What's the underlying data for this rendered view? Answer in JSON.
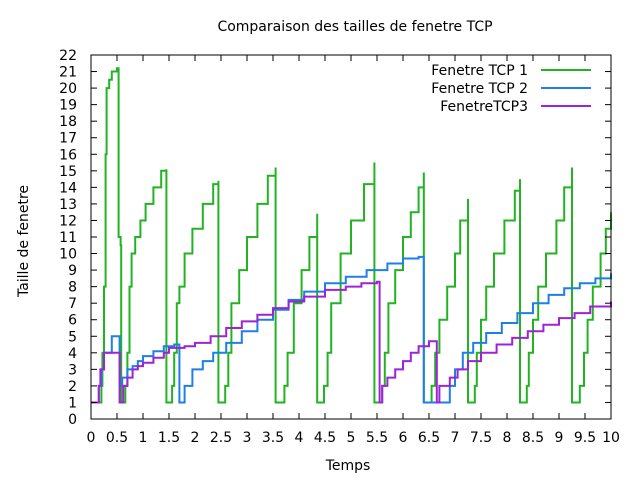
{
  "chart_data": {
    "type": "line",
    "title": "Comparaison des tailles de fenetre TCP",
    "xlabel": "Temps",
    "ylabel": "Taille de fenetre",
    "xlim": [
      0,
      10
    ],
    "ylim": [
      0,
      22
    ],
    "xticks": [
      0,
      0.5,
      1,
      1.5,
      2,
      2.5,
      3,
      3.5,
      4,
      4.5,
      5,
      5.5,
      6,
      6.5,
      7,
      7.5,
      8,
      8.5,
      9,
      9.5,
      10
    ],
    "xtick_labels": [
      "0",
      "0.5",
      "1",
      "1.5",
      "2",
      "2.5",
      "3",
      "3.5",
      "4",
      "4.5",
      "5",
      "5.5",
      "6",
      "6.5",
      "7",
      "7.5",
      "8",
      "8.5",
      "9",
      "9.5",
      "10"
    ],
    "yticks": [
      0,
      1,
      2,
      3,
      4,
      5,
      6,
      7,
      8,
      9,
      10,
      11,
      12,
      13,
      14,
      15,
      16,
      17,
      18,
      19,
      20,
      21,
      22
    ],
    "ytick_labels": [
      "0",
      "1",
      "2",
      "3",
      "4",
      "5",
      "6",
      "7",
      "8",
      "9",
      "10",
      "11",
      "12",
      "13",
      "14",
      "15",
      "16",
      "17",
      "18",
      "19",
      "20",
      "21",
      "22"
    ],
    "grid": false,
    "legend_position": "top-right",
    "series": [
      {
        "name": "Fenetre TCP 1",
        "color": "#22b322",
        "step": true,
        "points": [
          [
            0.17,
            1
          ],
          [
            0.2,
            2
          ],
          [
            0.22,
            4
          ],
          [
            0.25,
            8
          ],
          [
            0.28,
            16
          ],
          [
            0.3,
            20
          ],
          [
            0.35,
            20.5
          ],
          [
            0.4,
            21
          ],
          [
            0.5,
            21.2
          ],
          [
            0.53,
            21.2
          ],
          [
            0.53,
            11
          ],
          [
            0.57,
            10.5
          ],
          [
            0.58,
            1
          ],
          [
            0.62,
            1
          ],
          [
            0.66,
            2
          ],
          [
            0.7,
            4
          ],
          [
            0.74,
            8
          ],
          [
            0.78,
            10
          ],
          [
            0.85,
            11
          ],
          [
            0.95,
            12
          ],
          [
            1.05,
            13
          ],
          [
            1.2,
            14
          ],
          [
            1.35,
            15
          ],
          [
            1.45,
            15.1
          ],
          [
            1.45,
            1
          ],
          [
            1.52,
            1
          ],
          [
            1.56,
            2
          ],
          [
            1.6,
            4
          ],
          [
            1.65,
            7
          ],
          [
            1.7,
            8
          ],
          [
            1.8,
            10
          ],
          [
            1.95,
            11.5
          ],
          [
            2.15,
            13
          ],
          [
            2.35,
            14.2
          ],
          [
            2.45,
            14.4
          ],
          [
            2.45,
            1
          ],
          [
            2.52,
            1
          ],
          [
            2.58,
            2
          ],
          [
            2.64,
            4
          ],
          [
            2.7,
            7
          ],
          [
            2.85,
            9
          ],
          [
            3.0,
            11
          ],
          [
            3.2,
            13
          ],
          [
            3.4,
            14.7
          ],
          [
            3.55,
            15.2
          ],
          [
            3.55,
            1
          ],
          [
            3.65,
            1
          ],
          [
            3.72,
            2
          ],
          [
            3.78,
            4
          ],
          [
            3.9,
            7
          ],
          [
            4.05,
            9
          ],
          [
            4.2,
            11
          ],
          [
            4.35,
            12.4
          ],
          [
            4.35,
            1
          ],
          [
            4.42,
            1
          ],
          [
            4.48,
            2
          ],
          [
            4.55,
            4
          ],
          [
            4.62,
            7
          ],
          [
            4.8,
            10
          ],
          [
            5.0,
            12
          ],
          [
            5.25,
            14.2
          ],
          [
            5.45,
            15.5
          ],
          [
            5.45,
            1
          ],
          [
            5.55,
            1
          ],
          [
            5.6,
            2
          ],
          [
            5.65,
            4
          ],
          [
            5.72,
            7
          ],
          [
            5.85,
            9
          ],
          [
            6.0,
            11
          ],
          [
            6.15,
            12.5
          ],
          [
            6.3,
            14
          ],
          [
            6.4,
            14.9
          ],
          [
            6.4,
            1
          ],
          [
            6.48,
            1
          ],
          [
            6.55,
            2
          ],
          [
            6.62,
            4
          ],
          [
            6.7,
            6
          ],
          [
            6.85,
            8
          ],
          [
            7.0,
            10
          ],
          [
            7.1,
            12
          ],
          [
            7.25,
            13.3
          ],
          [
            7.25,
            1
          ],
          [
            7.32,
            1
          ],
          [
            7.38,
            2
          ],
          [
            7.42,
            4
          ],
          [
            7.5,
            6
          ],
          [
            7.6,
            8
          ],
          [
            7.75,
            10
          ],
          [
            7.95,
            12
          ],
          [
            8.15,
            13.8
          ],
          [
            8.25,
            14.5
          ],
          [
            8.25,
            1
          ],
          [
            8.32,
            1
          ],
          [
            8.38,
            2
          ],
          [
            8.42,
            4
          ],
          [
            8.5,
            6
          ],
          [
            8.6,
            8
          ],
          [
            8.75,
            10
          ],
          [
            8.95,
            12
          ],
          [
            9.1,
            14
          ],
          [
            9.25,
            15.2
          ],
          [
            9.25,
            1
          ],
          [
            9.35,
            1
          ],
          [
            9.4,
            2
          ],
          [
            9.48,
            4
          ],
          [
            9.55,
            6
          ],
          [
            9.65,
            8
          ],
          [
            9.8,
            10
          ],
          [
            9.9,
            11.5
          ],
          [
            10.0,
            12.5
          ]
        ]
      },
      {
        "name": "Fenetre TCP 2",
        "color": "#1e7fe6",
        "step": true,
        "points": [
          [
            0.0,
            1
          ],
          [
            0.1,
            1
          ],
          [
            0.15,
            2
          ],
          [
            0.2,
            3
          ],
          [
            0.25,
            4
          ],
          [
            0.4,
            5
          ],
          [
            0.55,
            5
          ],
          [
            0.55,
            2
          ],
          [
            0.6,
            2.5
          ],
          [
            0.7,
            3
          ],
          [
            0.8,
            3.2
          ],
          [
            0.9,
            3.5
          ],
          [
            1.0,
            3.8
          ],
          [
            1.2,
            4.1
          ],
          [
            1.4,
            4.4
          ],
          [
            1.6,
            4.5
          ],
          [
            1.7,
            4.5
          ],
          [
            1.7,
            1
          ],
          [
            1.75,
            1
          ],
          [
            1.8,
            2
          ],
          [
            1.95,
            3
          ],
          [
            2.15,
            3.5
          ],
          [
            2.35,
            4
          ],
          [
            2.6,
            4.6
          ],
          [
            2.9,
            5.3
          ],
          [
            3.2,
            6.0
          ],
          [
            3.5,
            6.6
          ],
          [
            3.8,
            7.2
          ],
          [
            4.1,
            7.7
          ],
          [
            4.5,
            8.2
          ],
          [
            4.9,
            8.6
          ],
          [
            5.3,
            9.0
          ],
          [
            5.7,
            9.4
          ],
          [
            6.0,
            9.7
          ],
          [
            6.3,
            9.8
          ],
          [
            6.4,
            9.8
          ],
          [
            6.4,
            1
          ],
          [
            6.5,
            1
          ],
          [
            6.8,
            1
          ],
          [
            6.9,
            2
          ],
          [
            7.0,
            3
          ],
          [
            7.15,
            4
          ],
          [
            7.35,
            4.6
          ],
          [
            7.6,
            5.2
          ],
          [
            7.9,
            5.8
          ],
          [
            8.2,
            6.4
          ],
          [
            8.5,
            7.0
          ],
          [
            8.8,
            7.5
          ],
          [
            9.1,
            7.9
          ],
          [
            9.4,
            8.2
          ],
          [
            9.7,
            8.5
          ],
          [
            10.0,
            8.8
          ]
        ]
      },
      {
        "name": "FenetreTCP3",
        "color": "#9e22d6",
        "step": true,
        "points": [
          [
            0.0,
            1
          ],
          [
            0.12,
            1
          ],
          [
            0.15,
            2
          ],
          [
            0.18,
            3
          ],
          [
            0.25,
            4
          ],
          [
            0.38,
            4
          ],
          [
            0.55,
            4
          ],
          [
            0.55,
            1
          ],
          [
            0.62,
            2
          ],
          [
            0.7,
            2.5
          ],
          [
            0.8,
            3
          ],
          [
            0.9,
            3.2
          ],
          [
            1.0,
            3.4
          ],
          [
            1.2,
            3.7
          ],
          [
            1.4,
            4.0
          ],
          [
            1.5,
            4.3
          ],
          [
            1.8,
            4.4
          ],
          [
            2.0,
            4.6
          ],
          [
            2.3,
            5.0
          ],
          [
            2.6,
            5.5
          ],
          [
            2.9,
            5.9
          ],
          [
            3.2,
            6.3
          ],
          [
            3.5,
            6.7
          ],
          [
            3.8,
            7.1
          ],
          [
            4.1,
            7.4
          ],
          [
            4.5,
            7.8
          ],
          [
            4.9,
            8.0
          ],
          [
            5.2,
            8.2
          ],
          [
            5.5,
            8.3
          ],
          [
            5.55,
            8.3
          ],
          [
            5.55,
            1
          ],
          [
            5.6,
            2
          ],
          [
            5.7,
            2.5
          ],
          [
            5.85,
            3
          ],
          [
            6.0,
            3.5
          ],
          [
            6.15,
            4
          ],
          [
            6.3,
            4.4
          ],
          [
            6.5,
            4.7
          ],
          [
            6.65,
            4.7
          ],
          [
            6.65,
            1
          ],
          [
            6.7,
            2
          ],
          [
            6.9,
            2.5
          ],
          [
            7.05,
            3
          ],
          [
            7.25,
            3.5
          ],
          [
            7.5,
            4.0
          ],
          [
            7.8,
            4.5
          ],
          [
            8.1,
            4.9
          ],
          [
            8.4,
            5.3
          ],
          [
            8.7,
            5.7
          ],
          [
            9.0,
            6.1
          ],
          [
            9.3,
            6.4
          ],
          [
            9.6,
            6.8
          ],
          [
            10.0,
            7.1
          ]
        ]
      }
    ]
  }
}
